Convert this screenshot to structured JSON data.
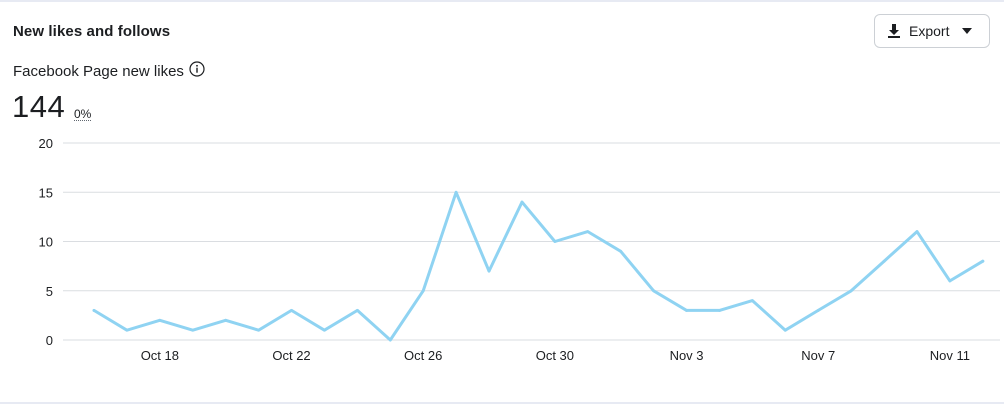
{
  "card": {
    "title": "New likes and follows",
    "export_label": "Export",
    "metric_label": "Facebook Page new likes",
    "total": "144",
    "change": "0%"
  },
  "colors": {
    "line": "#8fd3f2",
    "grid": "#dadde1",
    "text": "#1c1e21"
  },
  "icons": [
    "download-icon",
    "caret-down-icon",
    "info-icon"
  ],
  "chart_data": {
    "type": "line",
    "x": [
      "Oct 16",
      "Oct 17",
      "Oct 18",
      "Oct 19",
      "Oct 20",
      "Oct 21",
      "Oct 22",
      "Oct 23",
      "Oct 24",
      "Oct 25",
      "Oct 26",
      "Oct 27",
      "Oct 28",
      "Oct 29",
      "Oct 30",
      "Oct 31",
      "Nov 1",
      "Nov 2",
      "Nov 3",
      "Nov 4",
      "Nov 5",
      "Nov 6",
      "Nov 7",
      "Nov 8",
      "Nov 9",
      "Nov 10",
      "Nov 11",
      "Nov 12"
    ],
    "series": [
      {
        "values": [
          3,
          1,
          2,
          1,
          2,
          1,
          3,
          1,
          3,
          0,
          5,
          15,
          7,
          14,
          10,
          11,
          9,
          5,
          3,
          3,
          4,
          1,
          3,
          5,
          8,
          11,
          6,
          8
        ]
      }
    ],
    "x_tick_labels": [
      "Oct 18",
      "Oct 22",
      "Oct 26",
      "Oct 30",
      "Nov 3",
      "Nov 7",
      "Nov 11"
    ],
    "y_ticks": [
      0,
      5,
      10,
      15,
      20
    ],
    "ylim": [
      0,
      20
    ],
    "grid": true,
    "legend": "none"
  }
}
